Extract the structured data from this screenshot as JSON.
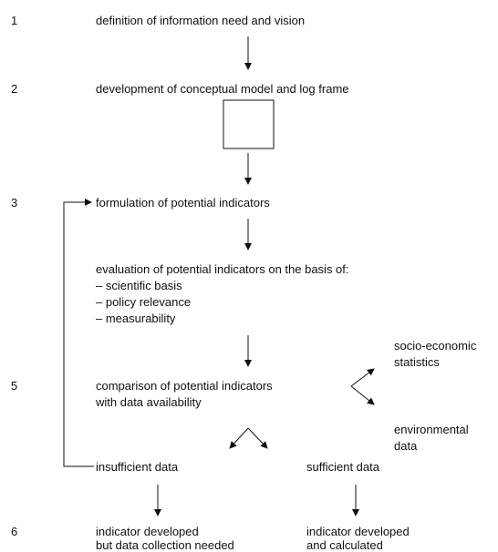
{
  "steps": [
    {
      "number": "1",
      "lines": [
        "definition of information need and vision"
      ]
    },
    {
      "number": "2",
      "lines": [
        "development of conceptual model and log frame"
      ]
    },
    {
      "number": "3",
      "lines": [
        "formulation of potential indicators"
      ]
    },
    {
      "lines": [
        "evaluation of potential indicators on the basis of:",
        "– scientific basis",
        "– policy relevance",
        "– measurability"
      ]
    },
    {
      "number": "5",
      "lines": [
        "comparison of potential indicators",
        "with data availability"
      ]
    }
  ],
  "sources": [
    {
      "lines": [
        "socio-economic",
        "statistics"
      ]
    },
    {
      "lines": [
        "environmental",
        "data"
      ]
    }
  ],
  "branches": [
    "insufficient data",
    "sufficient data"
  ],
  "outcome_number": "6",
  "outcomes": [
    {
      "lines": [
        "indicator developed",
        "but data collection needed"
      ]
    },
    {
      "lines": [
        "indicator developed",
        "and calculated"
      ]
    }
  ]
}
